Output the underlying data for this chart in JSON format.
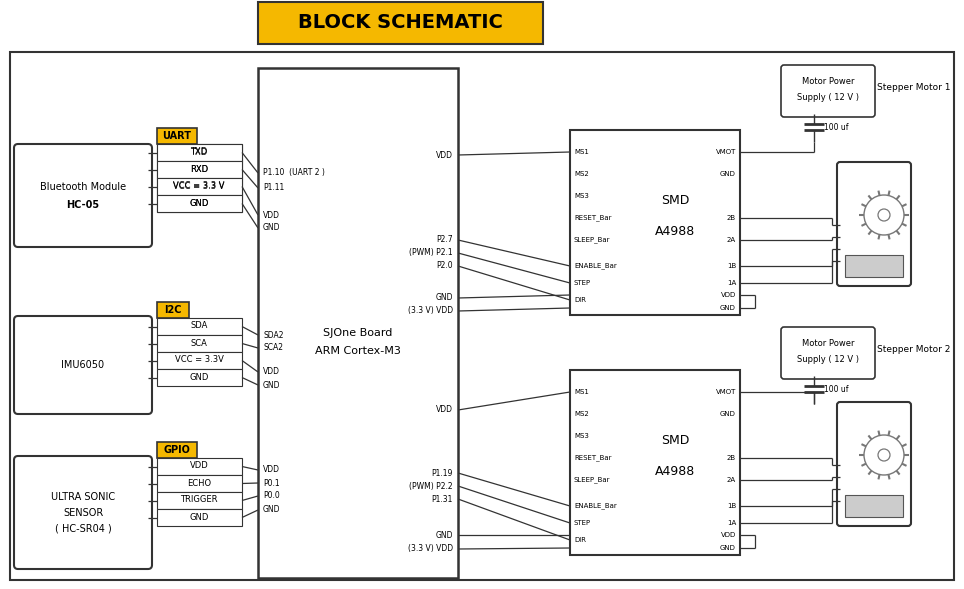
{
  "title": "BLOCK SCHEMATIC",
  "gold": "#F5B800",
  "lc": "#333333",
  "bg": "#FFFFFF",
  "uart_pins": [
    "TXD",
    "RXD",
    "VCC = 3.3 V",
    "GND"
  ],
  "i2c_pins": [
    "SDA",
    "SCA",
    "VCC = 3.3V",
    "GND"
  ],
  "gpio_pins": [
    "VDD",
    "ECHO",
    "TRIGGER",
    "GND"
  ],
  "smd1_left_pins": [
    "MS1",
    "MS2",
    "MS3",
    "RESET_Bar",
    "SLEEP_Bar"
  ],
  "smd1_en_pins": [
    "ENABLE_Bar",
    "STEP",
    "DIR"
  ],
  "smd1_right_top": [
    "VMOT",
    "GND"
  ],
  "smd1_right_mid": [
    "2B",
    "2A",
    "1B",
    "1A"
  ],
  "smd1_right_bot": [
    "VDD",
    "GND"
  ]
}
